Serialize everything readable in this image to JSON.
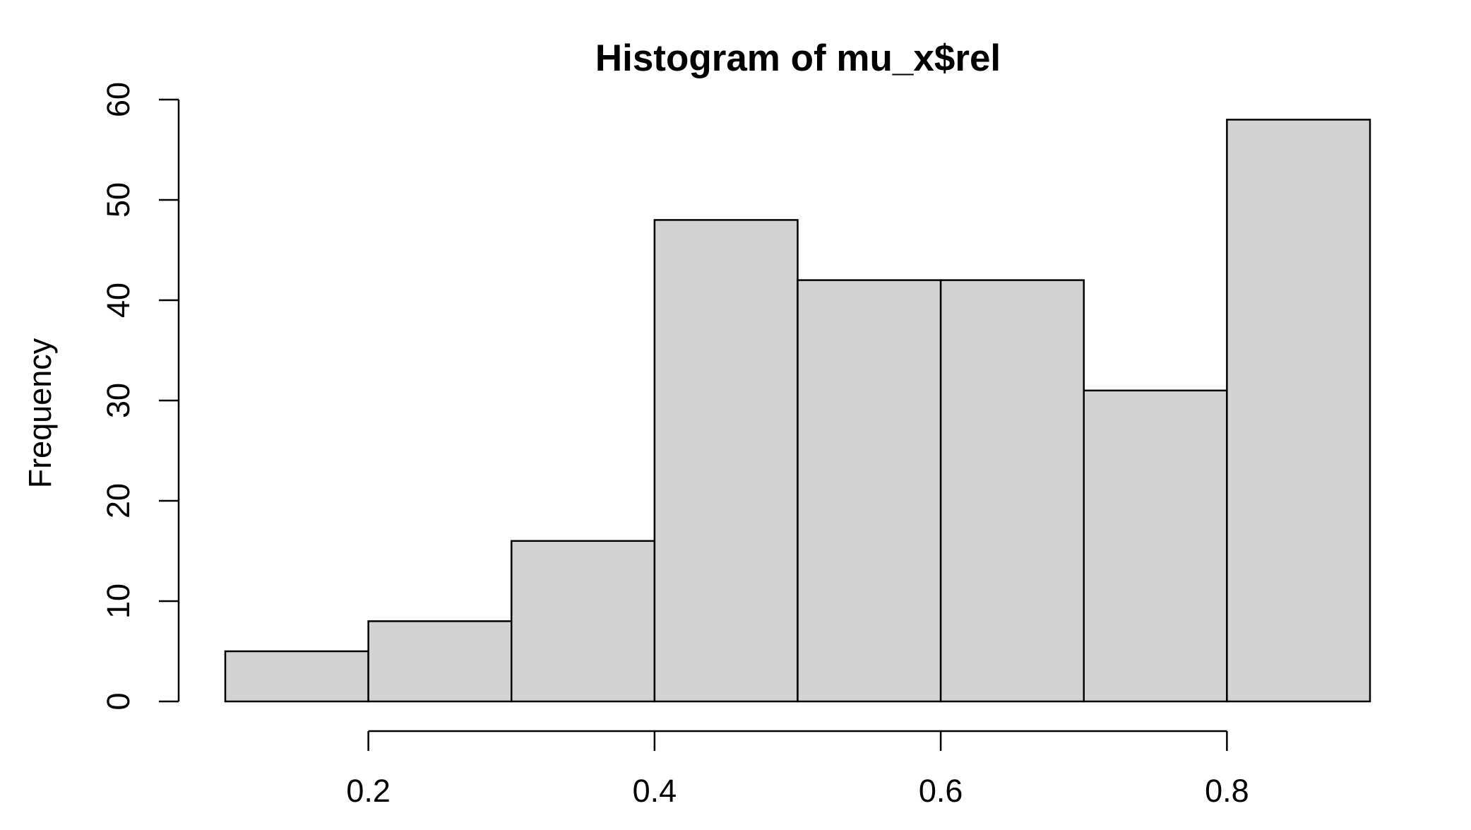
{
  "chart_data": {
    "type": "bar",
    "title": "Histogram of mu_x$rel",
    "xlabel": "",
    "ylabel": "Frequency",
    "bins": [
      [
        0.1,
        0.2
      ],
      [
        0.2,
        0.3
      ],
      [
        0.3,
        0.4
      ],
      [
        0.4,
        0.5
      ],
      [
        0.5,
        0.6
      ],
      [
        0.6,
        0.7
      ],
      [
        0.7,
        0.8
      ],
      [
        0.8,
        0.9
      ]
    ],
    "values": [
      5,
      8,
      16,
      48,
      42,
      42,
      31,
      58
    ],
    "xlim": [
      0.1,
      0.9
    ],
    "ylim": [
      0,
      60
    ],
    "x_ticks": [
      0.2,
      0.4,
      0.6,
      0.8
    ],
    "x_tick_labels": [
      "0.2",
      "0.4",
      "0.6",
      "0.8"
    ],
    "y_ticks": [
      0,
      10,
      20,
      30,
      40,
      50,
      60
    ],
    "y_tick_labels": [
      "0",
      "10",
      "20",
      "30",
      "40",
      "50",
      "60"
    ],
    "bar_color": "#d3d3d3",
    "edge_color": "#000000",
    "grid": false,
    "legend": "none"
  }
}
